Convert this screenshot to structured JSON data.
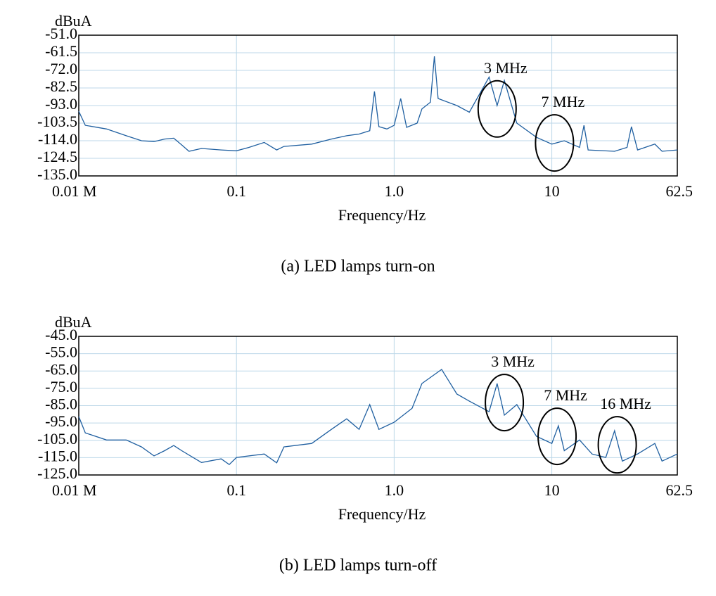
{
  "chart_data": [
    {
      "type": "line",
      "title": "(a) LED lamps turn-on",
      "ylabel": "dBuA",
      "xlabel": "Frequency/Hz",
      "xscale": "log",
      "grid": true,
      "color": "#1f5fa0",
      "xlim": [
        0.01,
        62.5
      ],
      "xticks": [
        {
          "value": 0.01,
          "label": "0.01 M"
        },
        0.1,
        {
          "value": 1,
          "label": "1.0"
        },
        10,
        62.5
      ],
      "ylim": [
        -135,
        -51
      ],
      "yticks": [
        {
          "value": -135,
          "label": "-135.0"
        },
        {
          "value": -124.5,
          "label": "-124.5"
        },
        {
          "value": -114,
          "label": "-114.0"
        },
        {
          "value": -103.5,
          "label": "-103.5"
        },
        {
          "value": -93,
          "label": "-93.0"
        },
        {
          "value": -82.5,
          "label": "-82.5"
        },
        {
          "value": -72,
          "label": "-72.0"
        },
        {
          "value": -61.5,
          "label": "-61.5"
        },
        {
          "value": -51,
          "label": "-51.0"
        }
      ],
      "x": [
        0.01,
        0.011,
        0.015,
        0.02,
        0.025,
        0.03,
        0.035,
        0.04,
        0.045,
        0.05,
        0.06,
        0.08,
        0.1,
        0.12,
        0.15,
        0.18,
        0.2,
        0.3,
        0.4,
        0.5,
        0.6,
        0.7,
        0.75,
        0.8,
        0.9,
        1.0,
        1.1,
        1.2,
        1.4,
        1.5,
        1.7,
        1.8,
        1.9,
        2.5,
        3.0,
        4.0,
        4.5,
        5,
        6,
        8,
        10,
        12,
        15,
        16,
        17,
        25,
        30,
        32,
        35,
        45,
        50,
        62.5
      ],
      "values": [
        -96.4,
        -104.8,
        -107,
        -111,
        -114,
        -114.5,
        -113,
        -112.5,
        -116.5,
        -120.3,
        -118.6,
        -119.5,
        -120,
        -118,
        -115,
        -119.5,
        -117.4,
        -116,
        -113,
        -111,
        -110,
        -108,
        -84.6,
        -105.6,
        -107,
        -104.8,
        -88.8,
        -106,
        -103.5,
        -95,
        -91,
        -63.6,
        -88.8,
        -93,
        -97,
        -76,
        -93,
        -78,
        -103.5,
        -112,
        -116,
        -114,
        -118,
        -104.8,
        -119.5,
        -120.3,
        -118,
        -105.6,
        -119.5,
        -116,
        -120.3,
        -119.5
      ],
      "annotations": [
        {
          "text": "3 MHz",
          "x": 4.5,
          "y": -95
        },
        {
          "text": "7 MHz",
          "x": 10.4,
          "y": -115.3
        }
      ]
    },
    {
      "type": "line",
      "title": "(b) LED lamps turn-off",
      "ylabel": "dBuA",
      "xlabel": "Frequency/Hz",
      "xscale": "log",
      "grid": true,
      "color": "#1f5fa0",
      "xlim": [
        0.01,
        62.5
      ],
      "xticks": [
        {
          "value": 0.01,
          "label": "0.01 M"
        },
        0.1,
        {
          "value": 1,
          "label": "1.0"
        },
        10,
        62.5
      ],
      "ylim": [
        -125,
        -45
      ],
      "yticks": [
        {
          "value": -125,
          "label": "-125.0"
        },
        {
          "value": -115,
          "label": "-115.0"
        },
        {
          "value": -105,
          "label": "-105.0"
        },
        {
          "value": -95,
          "label": "-95.0"
        },
        {
          "value": -85,
          "label": "-85.0"
        },
        {
          "value": -75,
          "label": "-75.0"
        },
        {
          "value": -65,
          "label": "-65.0"
        },
        {
          "value": -55,
          "label": "-55.0"
        },
        {
          "value": -45,
          "label": "-45.0"
        }
      ],
      "x": [
        0.01,
        0.011,
        0.015,
        0.02,
        0.025,
        0.03,
        0.035,
        0.04,
        0.045,
        0.06,
        0.08,
        0.09,
        0.1,
        0.15,
        0.18,
        0.2,
        0.3,
        0.4,
        0.5,
        0.6,
        0.7,
        0.8,
        1.0,
        1.3,
        1.5,
        2.0,
        2.5,
        3,
        4,
        4.5,
        5,
        6,
        8,
        10,
        11,
        12,
        15,
        18,
        22,
        25,
        28,
        35,
        45,
        50,
        62.5
      ],
      "values": [
        -91.3,
        -100.7,
        -104.8,
        -104.8,
        -108.8,
        -114,
        -111,
        -108,
        -111,
        -117.8,
        -115.7,
        -119,
        -114.9,
        -112.9,
        -118,
        -108.8,
        -106.8,
        -98.7,
        -92.6,
        -98.7,
        -84.4,
        -98.7,
        -94.6,
        -86.5,
        -72.2,
        -64.1,
        -78.3,
        -82.4,
        -88.5,
        -72.2,
        -90.5,
        -84.4,
        -102.7,
        -106.8,
        -96.6,
        -111,
        -104.8,
        -112.9,
        -114.9,
        -99.5,
        -117,
        -112.9,
        -106.8,
        -117,
        -112.9
      ],
      "annotations": [
        {
          "text": "3 MHz",
          "x": 5.0,
          "y": -83.2
        },
        {
          "text": "7 MHz",
          "x": 10.8,
          "y": -102.7
        },
        {
          "text": "16 MHz",
          "x": 26,
          "y": -107.6
        }
      ]
    }
  ]
}
